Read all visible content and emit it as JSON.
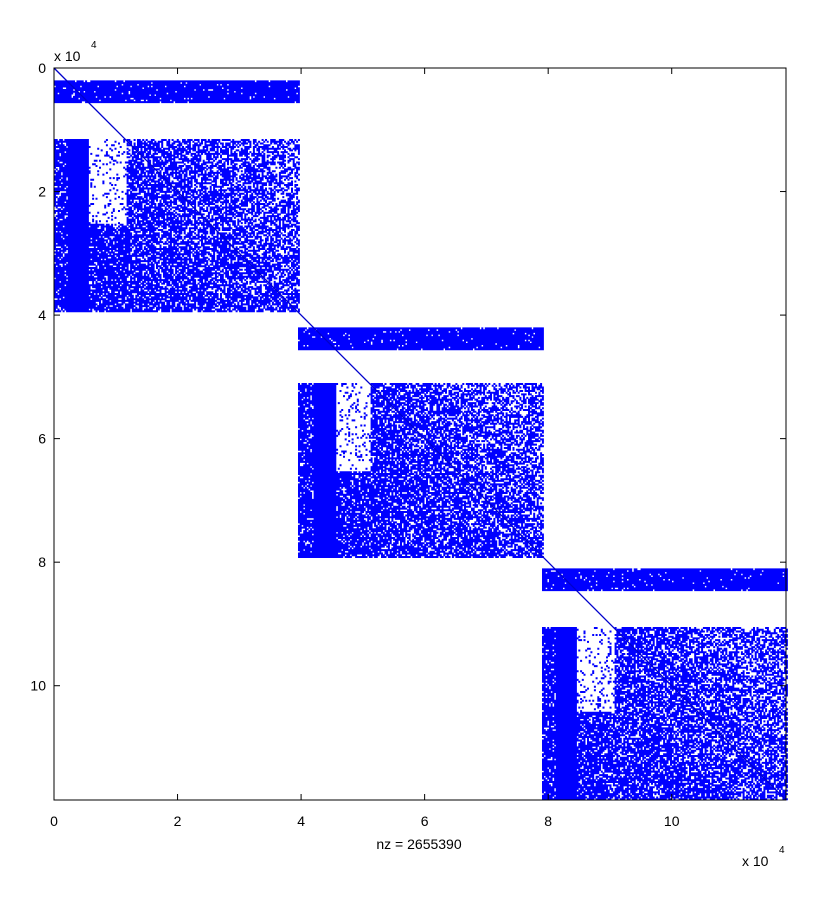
{
  "chart_data": {
    "type": "spy",
    "xlabel": "nz = 2655390",
    "x_exponent_base": "x 10",
    "x_exponent_power": "4",
    "y_exponent_base": "x 10",
    "y_exponent_power": "4",
    "x_ticks": [
      0,
      2,
      4,
      6,
      8,
      10
    ],
    "y_ticks": [
      0,
      2,
      4,
      6,
      8,
      10
    ],
    "x_tick_labels": [
      "0",
      "2",
      "4",
      "6",
      "8",
      "10"
    ],
    "y_tick_labels": [
      "0",
      "2",
      "4",
      "6",
      "8",
      "10"
    ],
    "xlim": [
      0,
      11.85
    ],
    "ylim": [
      0,
      11.85
    ],
    "y_reversed": true,
    "marker_color": "#0000ff",
    "diagonal": {
      "from": [
        0,
        0
      ],
      "to": [
        11.85,
        11.85
      ]
    },
    "blocks": [
      {
        "x_range": [
          0,
          3.95
        ],
        "bands": [
          {
            "rows": [
              0.2,
              0.55
            ],
            "density": 0.95
          },
          {
            "rows": [
              1.15,
              3.95
            ],
            "density": 0.75
          }
        ],
        "dense_columns": [
          0.2,
          0.55
        ],
        "sparse_region": {
          "cols": [
            0.55,
            1.15
          ],
          "rows": [
            1.15,
            2.5
          ]
        }
      },
      {
        "x_range": [
          3.95,
          7.9
        ],
        "bands": [
          {
            "rows": [
              4.2,
              4.55
            ],
            "density": 0.95
          },
          {
            "rows": [
              5.1,
              7.9
            ],
            "density": 0.75
          }
        ],
        "dense_columns": [
          4.2,
          4.55
        ],
        "sparse_region": {
          "cols": [
            4.55,
            5.1
          ],
          "rows": [
            5.1,
            6.5
          ]
        }
      },
      {
        "x_range": [
          7.9,
          11.85
        ],
        "bands": [
          {
            "rows": [
              8.1,
              8.45
            ],
            "density": 0.95
          },
          {
            "rows": [
              9.05,
              11.85
            ],
            "density": 0.75
          }
        ],
        "dense_columns": [
          8.1,
          8.45
        ],
        "sparse_region": {
          "cols": [
            8.45,
            9.05
          ],
          "rows": [
            9.05,
            10.4
          ]
        }
      }
    ]
  }
}
